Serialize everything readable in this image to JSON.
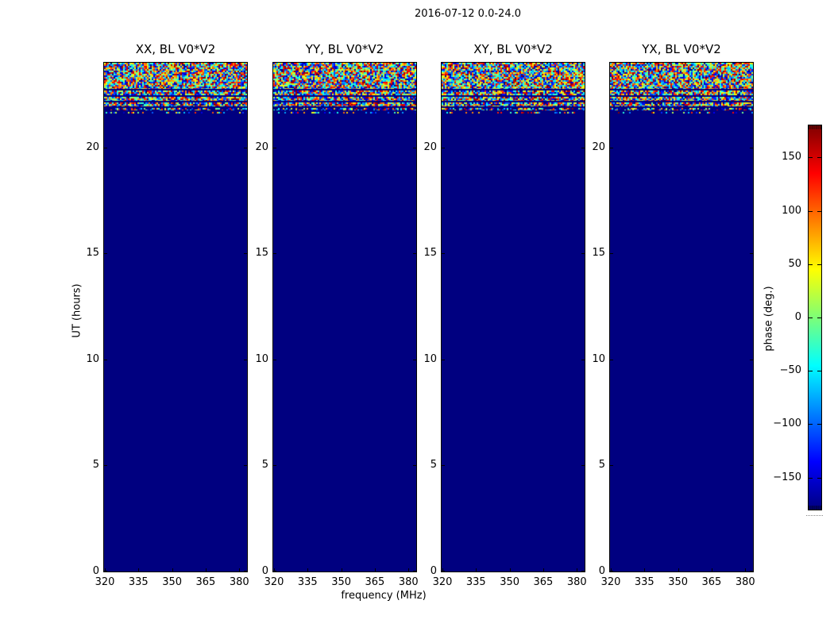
{
  "figure": {
    "background": "#ffffff"
  },
  "chart_data": {
    "type": "heatmap",
    "title": "2016-07-12 0.0-24.0",
    "xlabel": "frequency (MHz)",
    "ylabel": "UT (hours)",
    "xlim": [
      319.65,
      383.45
    ],
    "ylim": [
      0,
      24
    ],
    "xticks": [
      320,
      335,
      350,
      365,
      380
    ],
    "yticks": [
      0,
      5,
      10,
      15,
      20
    ],
    "grid": false,
    "panels": [
      {
        "pol": "xx",
        "title": "XX, BL V0*V2"
      },
      {
        "pol": "yy",
        "title": "YY, BL V0*V2"
      },
      {
        "pol": "xy",
        "title": "XY, BL V0*V2"
      },
      {
        "pol": "yx",
        "title": "YX, BL V0*V2"
      }
    ],
    "background_phase_deg": -180,
    "background_color": "#000080",
    "noise_bands": [
      {
        "ut_range": [
          22.76,
          24.0
        ],
        "density": 1.0
      },
      {
        "ut_range": [
          22.46,
          22.69
        ],
        "density": 0.97
      },
      {
        "ut_range": [
          22.19,
          22.39
        ],
        "density": 0.97
      },
      {
        "ut_range": [
          21.93,
          22.12
        ],
        "density": 0.9
      },
      {
        "ut_range": [
          21.75,
          21.86
        ],
        "density": 0.5
      },
      {
        "ut_range": [
          21.6,
          21.68
        ],
        "density": 0.3
      }
    ],
    "colorbar": {
      "label": "phase (deg.)",
      "colormap": "jet",
      "range": [
        -180,
        180
      ],
      "tick_values": [
        150,
        100,
        50,
        0,
        -50,
        -100,
        -150
      ],
      "tick_labels": [
        "150",
        "100",
        "50",
        "0",
        "−50",
        "−100",
        "−150"
      ],
      "gradient_stops": [
        {
          "pos": 0.0,
          "color": "#800000"
        },
        {
          "pos": 0.125,
          "color": "#ff0000"
        },
        {
          "pos": 0.375,
          "color": "#ffff00"
        },
        {
          "pos": 0.5,
          "color": "#7dff77"
        },
        {
          "pos": 0.625,
          "color": "#00ffff"
        },
        {
          "pos": 0.875,
          "color": "#0000ff"
        },
        {
          "pos": 1.0,
          "color": "#000080"
        }
      ]
    }
  }
}
